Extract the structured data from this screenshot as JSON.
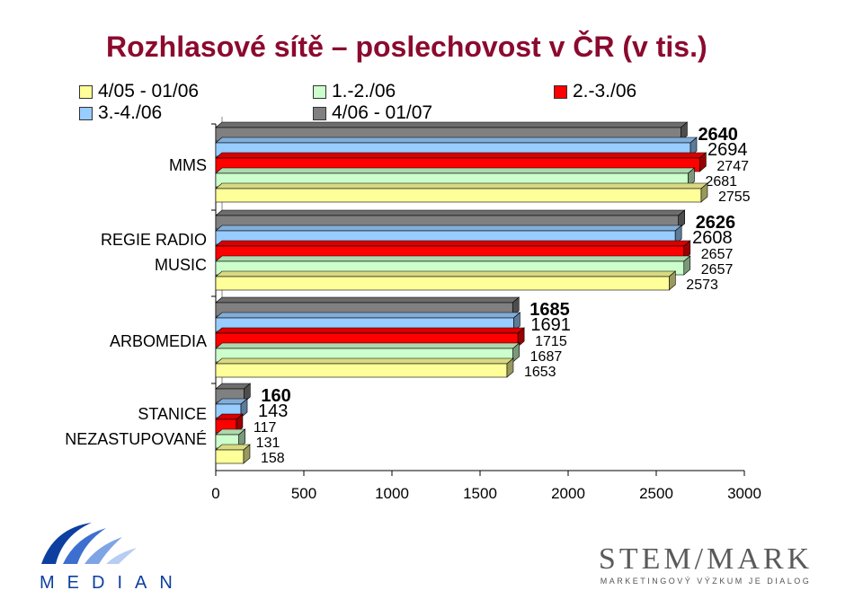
{
  "title": "Rozhlasové sítě – poslechovost v ČR (v tis.)",
  "chart_data": {
    "type": "bar",
    "orientation": "horizontal",
    "categories": [
      "MMS",
      "REGIE RADIO MUSIC",
      "ARBOMEDIA",
      "STANICE NEZASTUPOVANÉ"
    ],
    "category_lines": [
      [
        "MMS"
      ],
      [
        "REGIE RADIO",
        "MUSIC"
      ],
      [
        "ARBOMEDIA"
      ],
      [
        "STANICE",
        "NEZASTUPOVANÉ"
      ]
    ],
    "series": [
      {
        "name": "4/06 - 01/07",
        "values": [
          2640,
          2626,
          1685,
          160
        ],
        "color": "#808080"
      },
      {
        "name": "3.-4./06",
        "values": [
          2694,
          2608,
          1691,
          143
        ],
        "color": "#99CCFF"
      },
      {
        "name": "2.-3./06",
        "values": [
          2747,
          2657,
          1715,
          117
        ],
        "color": "#FF0000"
      },
      {
        "name": "1.-2./06",
        "values": [
          2681,
          2657,
          1687,
          131
        ],
        "color": "#CCFFCC"
      },
      {
        "name": "4/05 - 01/06",
        "values": [
          2755,
          2573,
          1653,
          158
        ],
        "color": "#FFFF99"
      }
    ],
    "bold_series": "4/06 - 01/07",
    "xlim": [
      0,
      3000
    ],
    "xticks": [
      "0",
      "500",
      "1000",
      "1500",
      "2000",
      "2500",
      "3000"
    ],
    "grid": false
  },
  "legend": [
    {
      "label": "4/05 - 01/06",
      "color": "#FFFF99"
    },
    {
      "label": "1.-2./06",
      "color": "#CCFFCC"
    },
    {
      "label": "2.-3./06",
      "color": "#FF0000"
    },
    {
      "label": "3.-4./06",
      "color": "#99CCFF"
    },
    {
      "label": "4/06 - 01/07",
      "color": "#808080"
    }
  ],
  "footer": {
    "median_logo": "MEDIAN",
    "stem_name": "STEM/MARK",
    "stem_tagline": "MARKETINGOVÝ VÝZKUM JE DIALOG"
  }
}
